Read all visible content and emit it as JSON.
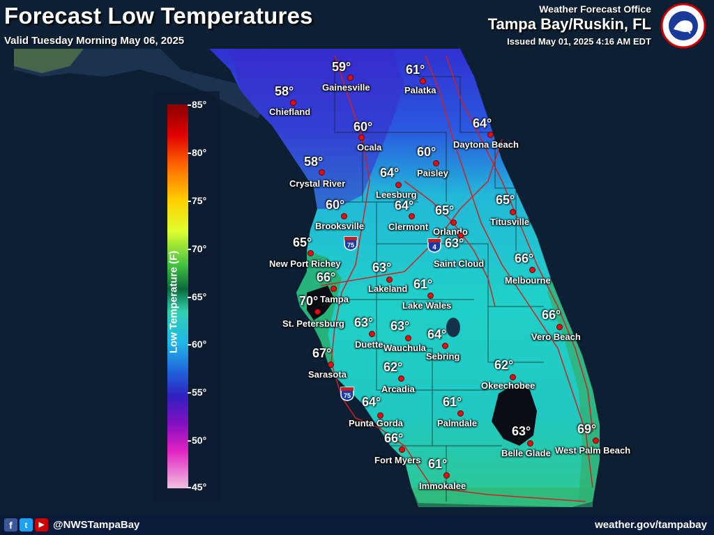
{
  "header": {
    "title": "Forecast Low Temperatures",
    "valid": "Valid Tuesday Morning May 06, 2025",
    "office_label": "Weather Forecast Office",
    "office_name": "Tampa Bay/Ruskin, FL",
    "issued": "Issued May 01, 2025 4:16 AM EDT",
    "logo_text": "NATIONAL WEATHER SERVICE"
  },
  "legend": {
    "title": "Low Temperature (F)",
    "ticks": [
      "85°",
      "80°",
      "75°",
      "70°",
      "65°",
      "60°",
      "55°",
      "50°",
      "45°"
    ],
    "min": 45,
    "max": 85
  },
  "cities": [
    {
      "name": "Gainesville",
      "temp": "59°"
    },
    {
      "name": "Palatka",
      "temp": "61°"
    },
    {
      "name": "Chiefland",
      "temp": "58°"
    },
    {
      "name": "Ocala",
      "temp": "60°"
    },
    {
      "name": "Daytona Beach",
      "temp": "64°"
    },
    {
      "name": "Paisley",
      "temp": "60°"
    },
    {
      "name": "Crystal River",
      "temp": "58°"
    },
    {
      "name": "Leesburg",
      "temp": "64°"
    },
    {
      "name": "Clermont",
      "temp": "64°"
    },
    {
      "name": "Orlando",
      "temp": "65°"
    },
    {
      "name": "Titusville",
      "temp": "65°"
    },
    {
      "name": "Brooksville",
      "temp": "60°"
    },
    {
      "name": "New Port Richey",
      "temp": "65°"
    },
    {
      "name": "Saint Cloud",
      "temp": "63°"
    },
    {
      "name": "Melbourne",
      "temp": "66°"
    },
    {
      "name": "Lakeland",
      "temp": "63°"
    },
    {
      "name": "Tampa",
      "temp": "66°"
    },
    {
      "name": "Lake Wales",
      "temp": "61°"
    },
    {
      "name": "St. Petersburg",
      "temp": "70°"
    },
    {
      "name": "Vero Beach",
      "temp": "66°"
    },
    {
      "name": "Duette",
      "temp": "63°"
    },
    {
      "name": "Wauchula",
      "temp": "63°"
    },
    {
      "name": "Sebring",
      "temp": "64°"
    },
    {
      "name": "Sarasota",
      "temp": "67°"
    },
    {
      "name": "Arcadia",
      "temp": "62°"
    },
    {
      "name": "Okeechobee",
      "temp": "62°"
    },
    {
      "name": "Punta Gorda",
      "temp": "64°"
    },
    {
      "name": "Palmdale",
      "temp": "61°"
    },
    {
      "name": "Fort Myers",
      "temp": "66°"
    },
    {
      "name": "Belle Glade",
      "temp": "63°"
    },
    {
      "name": "West Palm Beach",
      "temp": "69°"
    },
    {
      "name": "Immokalee",
      "temp": "61°"
    }
  ],
  "highways": {
    "i75": "75",
    "i4": "4"
  },
  "footer": {
    "facebook": "f",
    "twitter": "t",
    "youtube": "▶",
    "handle": "@NWSTampaBay",
    "website": "weather.gov/tampabay"
  },
  "colors": {
    "accent_red": "#e01010",
    "water": "#0d1f33",
    "header_text": "#ffffff"
  }
}
